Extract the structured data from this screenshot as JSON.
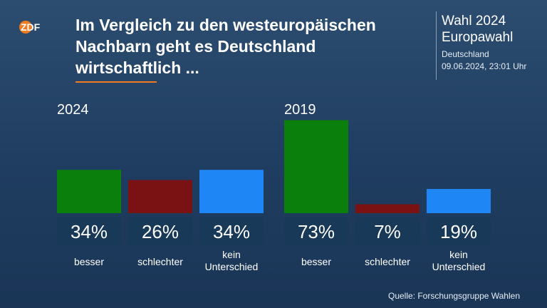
{
  "brand": {
    "logo_text": "ZDF",
    "logo_color": "#f07c1f"
  },
  "header": {
    "title_lines": [
      "Im Vergleich zu den westeuropäischen",
      "Nachbarn geht es Deutschland",
      "wirtschaftlich ..."
    ]
  },
  "info": {
    "line1": "Wahl 2024",
    "line2": "Europawahl",
    "line3": "Deutschland",
    "line4": "09.06.2024, 23:01 Uhr"
  },
  "source": "Quelle: Forschungsgruppe Wahlen",
  "chart_data": {
    "type": "bar",
    "ylim": [
      0,
      75
    ],
    "groups": [
      {
        "label": "2024",
        "bars": [
          {
            "category": [
              "besser"
            ],
            "value": 34,
            "value_label": "34%",
            "color": "#0b7f0b"
          },
          {
            "category": [
              "schlechter"
            ],
            "value": 26,
            "value_label": "26%",
            "color": "#7a1113"
          },
          {
            "category": [
              "kein",
              "Unterschied"
            ],
            "value": 34,
            "value_label": "34%",
            "color": "#1f86f5"
          }
        ]
      },
      {
        "label": "2019",
        "bars": [
          {
            "category": [
              "besser"
            ],
            "value": 73,
            "value_label": "73%",
            "color": "#0b7f0b"
          },
          {
            "category": [
              "schlechter"
            ],
            "value": 7,
            "value_label": "7%",
            "color": "#7a1113"
          },
          {
            "category": [
              "kein",
              "Unterschied"
            ],
            "value": 19,
            "value_label": "19%",
            "color": "#1f86f5"
          }
        ]
      }
    ]
  }
}
